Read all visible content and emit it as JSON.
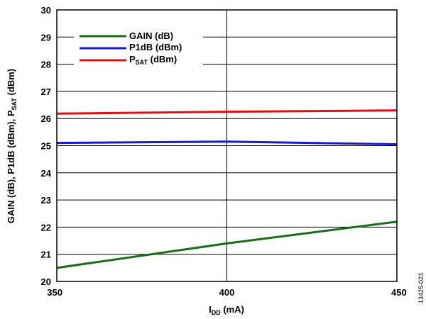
{
  "chart_data": {
    "type": "line",
    "x": [
      350,
      400,
      450
    ],
    "xlim": [
      350,
      450
    ],
    "ylim": [
      20,
      30
    ],
    "x_ticks": [
      "350",
      "400",
      "450"
    ],
    "y_ticks": [
      "20",
      "21",
      "22",
      "23",
      "24",
      "25",
      "26",
      "27",
      "28",
      "29",
      "30"
    ],
    "xlabel": {
      "main": "I",
      "sub": "DD",
      "tail": " (mA)"
    },
    "ylabel": {
      "part1": "GAIN (dB), P1dB (dBm), P",
      "sub": "SAT",
      "part2": " (dBm)"
    },
    "grid": true,
    "legend_position": "top-left",
    "series": [
      {
        "name": "GAIN (dB)",
        "color": "#1a6b1a",
        "values": [
          20.5,
          21.4,
          22.2
        ]
      },
      {
        "name": "P1dB (dBm)",
        "color": "#1a1acc",
        "values": [
          25.1,
          25.15,
          25.05
        ]
      },
      {
        "name_main": "P",
        "name_sub": "SAT",
        "name_tail": " (dBm)",
        "color": "#e01010",
        "values": [
          26.18,
          26.25,
          26.3
        ]
      }
    ],
    "figure_id": "13425-023"
  }
}
